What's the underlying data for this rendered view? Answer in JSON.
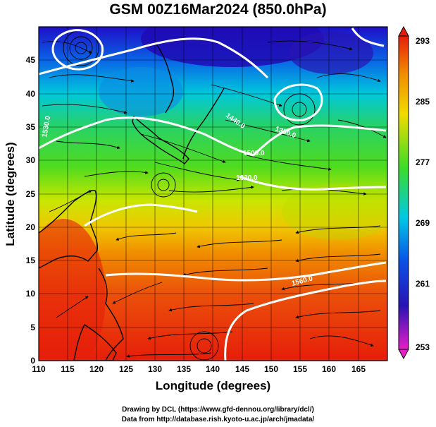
{
  "title": "GSM 00Z16Mar2024 (850.0hPa)",
  "xlabel": "Longitude (degrees)",
  "ylabel": "Latitude  (degrees)",
  "x_ticks": [
    "110",
    "115",
    "120",
    "125",
    "130",
    "135",
    "140",
    "145",
    "150",
    "155",
    "160",
    "165"
  ],
  "y_ticks": [
    "0",
    "5",
    "10",
    "15",
    "20",
    "25",
    "30",
    "35",
    "40",
    "45"
  ],
  "colorbar_ticks": [
    "293",
    "285",
    "277",
    "269",
    "261",
    "253"
  ],
  "contour_labels": [
    "1530.0",
    "1440.0",
    "1350.0",
    "1500.0",
    "1620.0",
    "1560.0"
  ],
  "credit_line1": "Drawing by DCL (https://www.gfd-dennou.org/library/dcl/)",
  "credit_line2": "Data from http://database.rish.kyoto-u.ac.jp/arch/jmadata/",
  "chart_data": {
    "type": "heatmap",
    "title": "GSM 00Z16Mar2024 (850.0hPa)",
    "xlabel": "Longitude (degrees)",
    "ylabel": "Latitude  (degrees)",
    "xlim": [
      110,
      170
    ],
    "ylim": [
      0,
      50
    ],
    "colorbar": {
      "range": [
        253,
        293
      ]
    },
    "grid": true
  },
  "colors": {
    "cold": "#1e0fc8",
    "cool": "#00c8e6",
    "mid": "#3cdc28",
    "warm": "#f0dc00",
    "hot": "#e61e0a",
    "contour": "#ffffff",
    "streamline": "#000000"
  }
}
